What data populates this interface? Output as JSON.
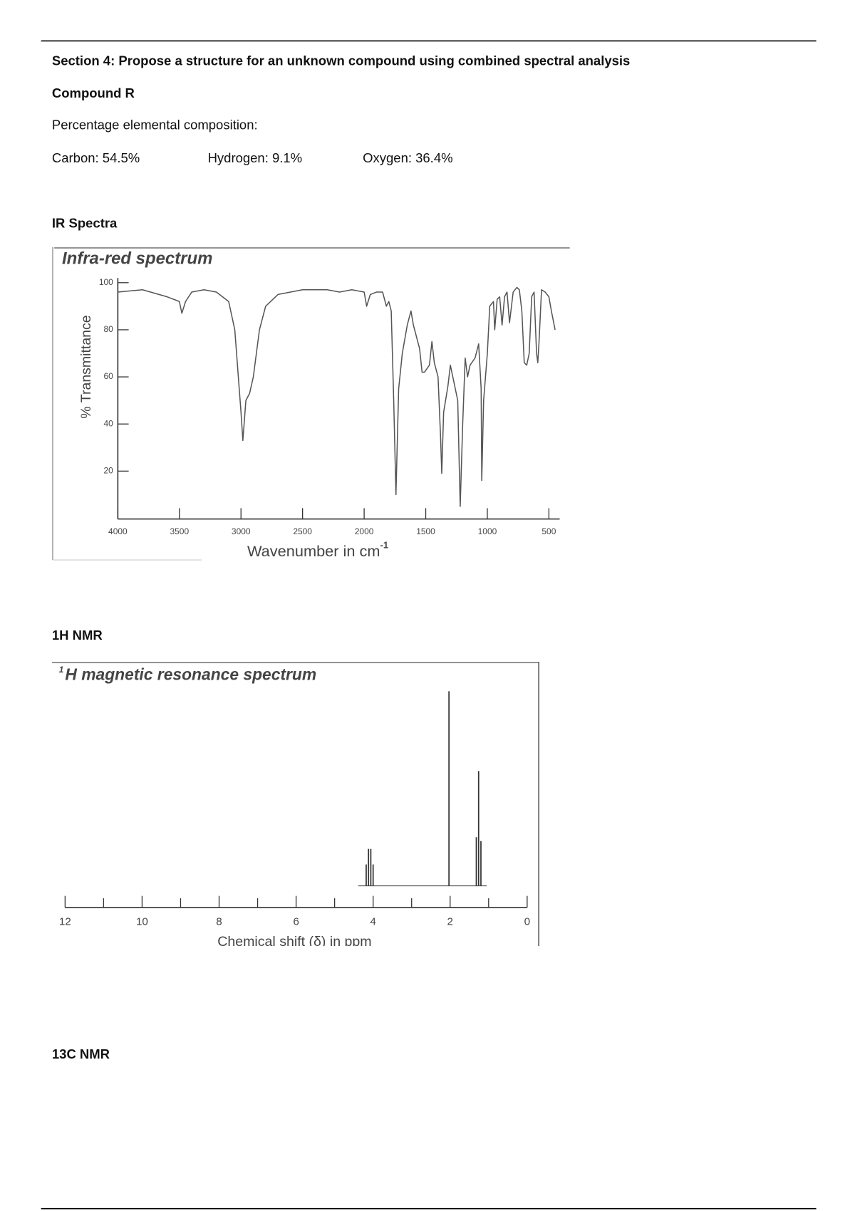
{
  "header": {
    "section_title": "Section 4: Propose a structure for an unknown compound using combined spectral analysis",
    "compound": "Compound R",
    "composition_label": "Percentage elemental composition:",
    "composition": [
      "Carbon: 54.5%",
      "Hydrogen: 9.1%",
      "Oxygen: 36.4%"
    ]
  },
  "ir": {
    "heading": "IR Spectra",
    "figure": {
      "title": "Infra-red spectrum",
      "y_label": "% Transmittance",
      "x_label": "Wavenumber in cm",
      "x_label_sup": "-1",
      "ylim": [
        0,
        100
      ],
      "yticks": [
        20,
        40,
        60,
        80,
        100
      ],
      "xlim": [
        4000,
        400
      ],
      "xticks": [
        4000,
        3500,
        3000,
        2500,
        2000,
        1500,
        1000,
        500
      ],
      "x": [
        4000,
        3800,
        3600,
        3500,
        3480,
        3450,
        3400,
        3300,
        3200,
        3100,
        3050,
        3000,
        2985,
        2960,
        2930,
        2900,
        2850,
        2800,
        2700,
        2500,
        2300,
        2200,
        2100,
        2000,
        1980,
        1950,
        1900,
        1850,
        1820,
        1800,
        1780,
        1760,
        1742,
        1720,
        1690,
        1650,
        1620,
        1600,
        1550,
        1530,
        1510,
        1470,
        1450,
        1430,
        1400,
        1380,
        1370,
        1355,
        1320,
        1300,
        1240,
        1220,
        1200,
        1180,
        1160,
        1140,
        1100,
        1070,
        1050,
        1045,
        1030,
        1000,
        980,
        950,
        940,
        920,
        900,
        880,
        860,
        840,
        820,
        790,
        760,
        740,
        720,
        700,
        680,
        660,
        640,
        620,
        600,
        590,
        580,
        560,
        530,
        500,
        480,
        450
      ],
      "values": [
        96,
        97,
        94,
        92,
        87,
        92,
        96,
        97,
        96,
        92,
        80,
        45,
        33,
        50,
        53,
        60,
        80,
        90,
        95,
        97,
        97,
        96,
        97,
        96,
        90,
        95,
        96,
        96,
        90,
        92,
        88,
        50,
        10,
        55,
        70,
        82,
        88,
        82,
        72,
        62,
        62,
        65,
        75,
        66,
        60,
        35,
        19,
        45,
        56,
        65,
        50,
        5,
        40,
        68,
        60,
        65,
        68,
        74,
        55,
        16,
        50,
        70,
        90,
        92,
        80,
        93,
        94,
        82,
        94,
        96,
        83,
        96,
        98,
        97,
        88,
        66,
        65,
        70,
        94,
        96,
        70,
        66,
        75,
        97,
        96,
        94,
        88,
        80
      ]
    }
  },
  "h_nmr": {
    "heading": "1H NMR",
    "figure": {
      "title_sup": "1",
      "title": "H magnetic resonance spectrum",
      "x_label": "Chemical shift (δ) in ppm",
      "xlim": [
        12.1,
        -0.1
      ],
      "xticks": [
        12,
        10,
        8,
        6,
        4,
        2,
        0
      ],
      "xminor": [
        11,
        9,
        7,
        5,
        3,
        1
      ],
      "ylim": [
        0,
        100
      ],
      "shifts": [
        4.18,
        4.12,
        4.06,
        4.0,
        2.03,
        1.32,
        1.26,
        1.2
      ],
      "intensities": [
        11,
        19,
        19,
        11,
        100,
        25,
        59,
        23
      ]
    }
  },
  "c_nmr": {
    "heading": "13C NMR"
  }
}
